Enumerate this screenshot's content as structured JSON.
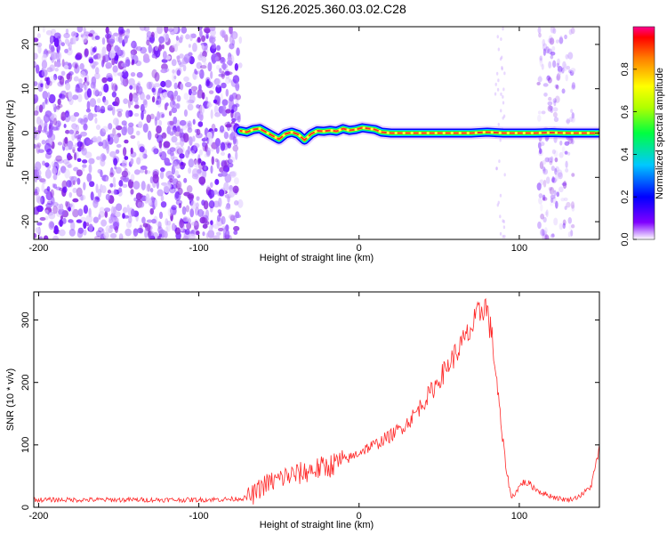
{
  "title": "S126.2025.360.03.02.C28",
  "chart_data": [
    {
      "type": "heatmap",
      "xlabel": "Height of straight line (km)",
      "ylabel": "Frequency (Hz)",
      "xlim": [
        -203,
        150
      ],
      "ylim": [
        -24,
        24
      ],
      "xticks": [
        -200,
        -100,
        0,
        100
      ],
      "yticks": [
        -20,
        -10,
        0,
        10,
        20
      ],
      "grid": false,
      "colorbar": {
        "label": "Normalized spectral amplitude",
        "range": [
          0,
          1
        ],
        "ticks": [
          "0.0",
          "0.2",
          "0.4",
          "0.6",
          "0.8"
        ]
      },
      "ridge": {
        "x": [
          -74,
          -70,
          -66,
          -62,
          -58,
          -54,
          -50,
          -46,
          -42,
          -38,
          -34,
          -30,
          -26,
          -22,
          -18,
          -14,
          -10,
          -6,
          -2,
          2,
          6,
          10,
          14,
          20,
          30,
          40,
          50,
          60,
          70,
          80,
          90,
          100,
          110,
          120,
          130,
          140,
          150
        ],
        "y": [
          0.5,
          0.2,
          0.8,
          1.0,
          0.2,
          -0.6,
          -1.4,
          -0.2,
          0.2,
          -0.3,
          -1.6,
          -0.2,
          0.5,
          0.4,
          0.6,
          0.4,
          1.0,
          0.6,
          0.8,
          1.2,
          1.0,
          0.8,
          0.2,
          0.0,
          0.0,
          0.0,
          0.0,
          0.0,
          0.0,
          0.2,
          0.0,
          0.0,
          0.0,
          0.1,
          0.0,
          0.0,
          0.0
        ]
      },
      "noise_region_x": [
        -203,
        -74
      ]
    },
    {
      "type": "line",
      "xlabel": "Height of straight line (km)",
      "ylabel": "SNR (10 * v/v)",
      "xlim": [
        -203,
        150
      ],
      "ylim": [
        0,
        345
      ],
      "xticks": [
        -200,
        -100,
        0,
        100
      ],
      "yticks": [
        0,
        100,
        200,
        300
      ],
      "grid": false,
      "series": [
        {
          "color": "#ff2a2a",
          "x": [
            -203,
            -180,
            -160,
            -140,
            -120,
            -100,
            -80,
            -70,
            -65,
            -60,
            -55,
            -50,
            -45,
            -40,
            -35,
            -30,
            -25,
            -20,
            -15,
            -10,
            -5,
            0,
            5,
            10,
            15,
            20,
            25,
            30,
            35,
            40,
            45,
            50,
            55,
            60,
            65,
            70,
            75,
            78,
            80,
            83,
            86,
            89,
            92,
            95,
            98,
            102,
            106,
            110,
            115,
            120,
            125,
            130,
            135,
            140,
            145,
            150
          ],
          "y": [
            12,
            12,
            12,
            12,
            12,
            12,
            13,
            15,
            22,
            35,
            40,
            45,
            50,
            52,
            55,
            60,
            62,
            65,
            70,
            75,
            80,
            88,
            95,
            100,
            108,
            115,
            125,
            135,
            150,
            168,
            185,
            205,
            225,
            245,
            265,
            285,
            310,
            325,
            315,
            270,
            200,
            120,
            60,
            15,
            25,
            40,
            38,
            30,
            22,
            18,
            14,
            12,
            15,
            22,
            35,
            95
          ]
        }
      ]
    }
  ]
}
